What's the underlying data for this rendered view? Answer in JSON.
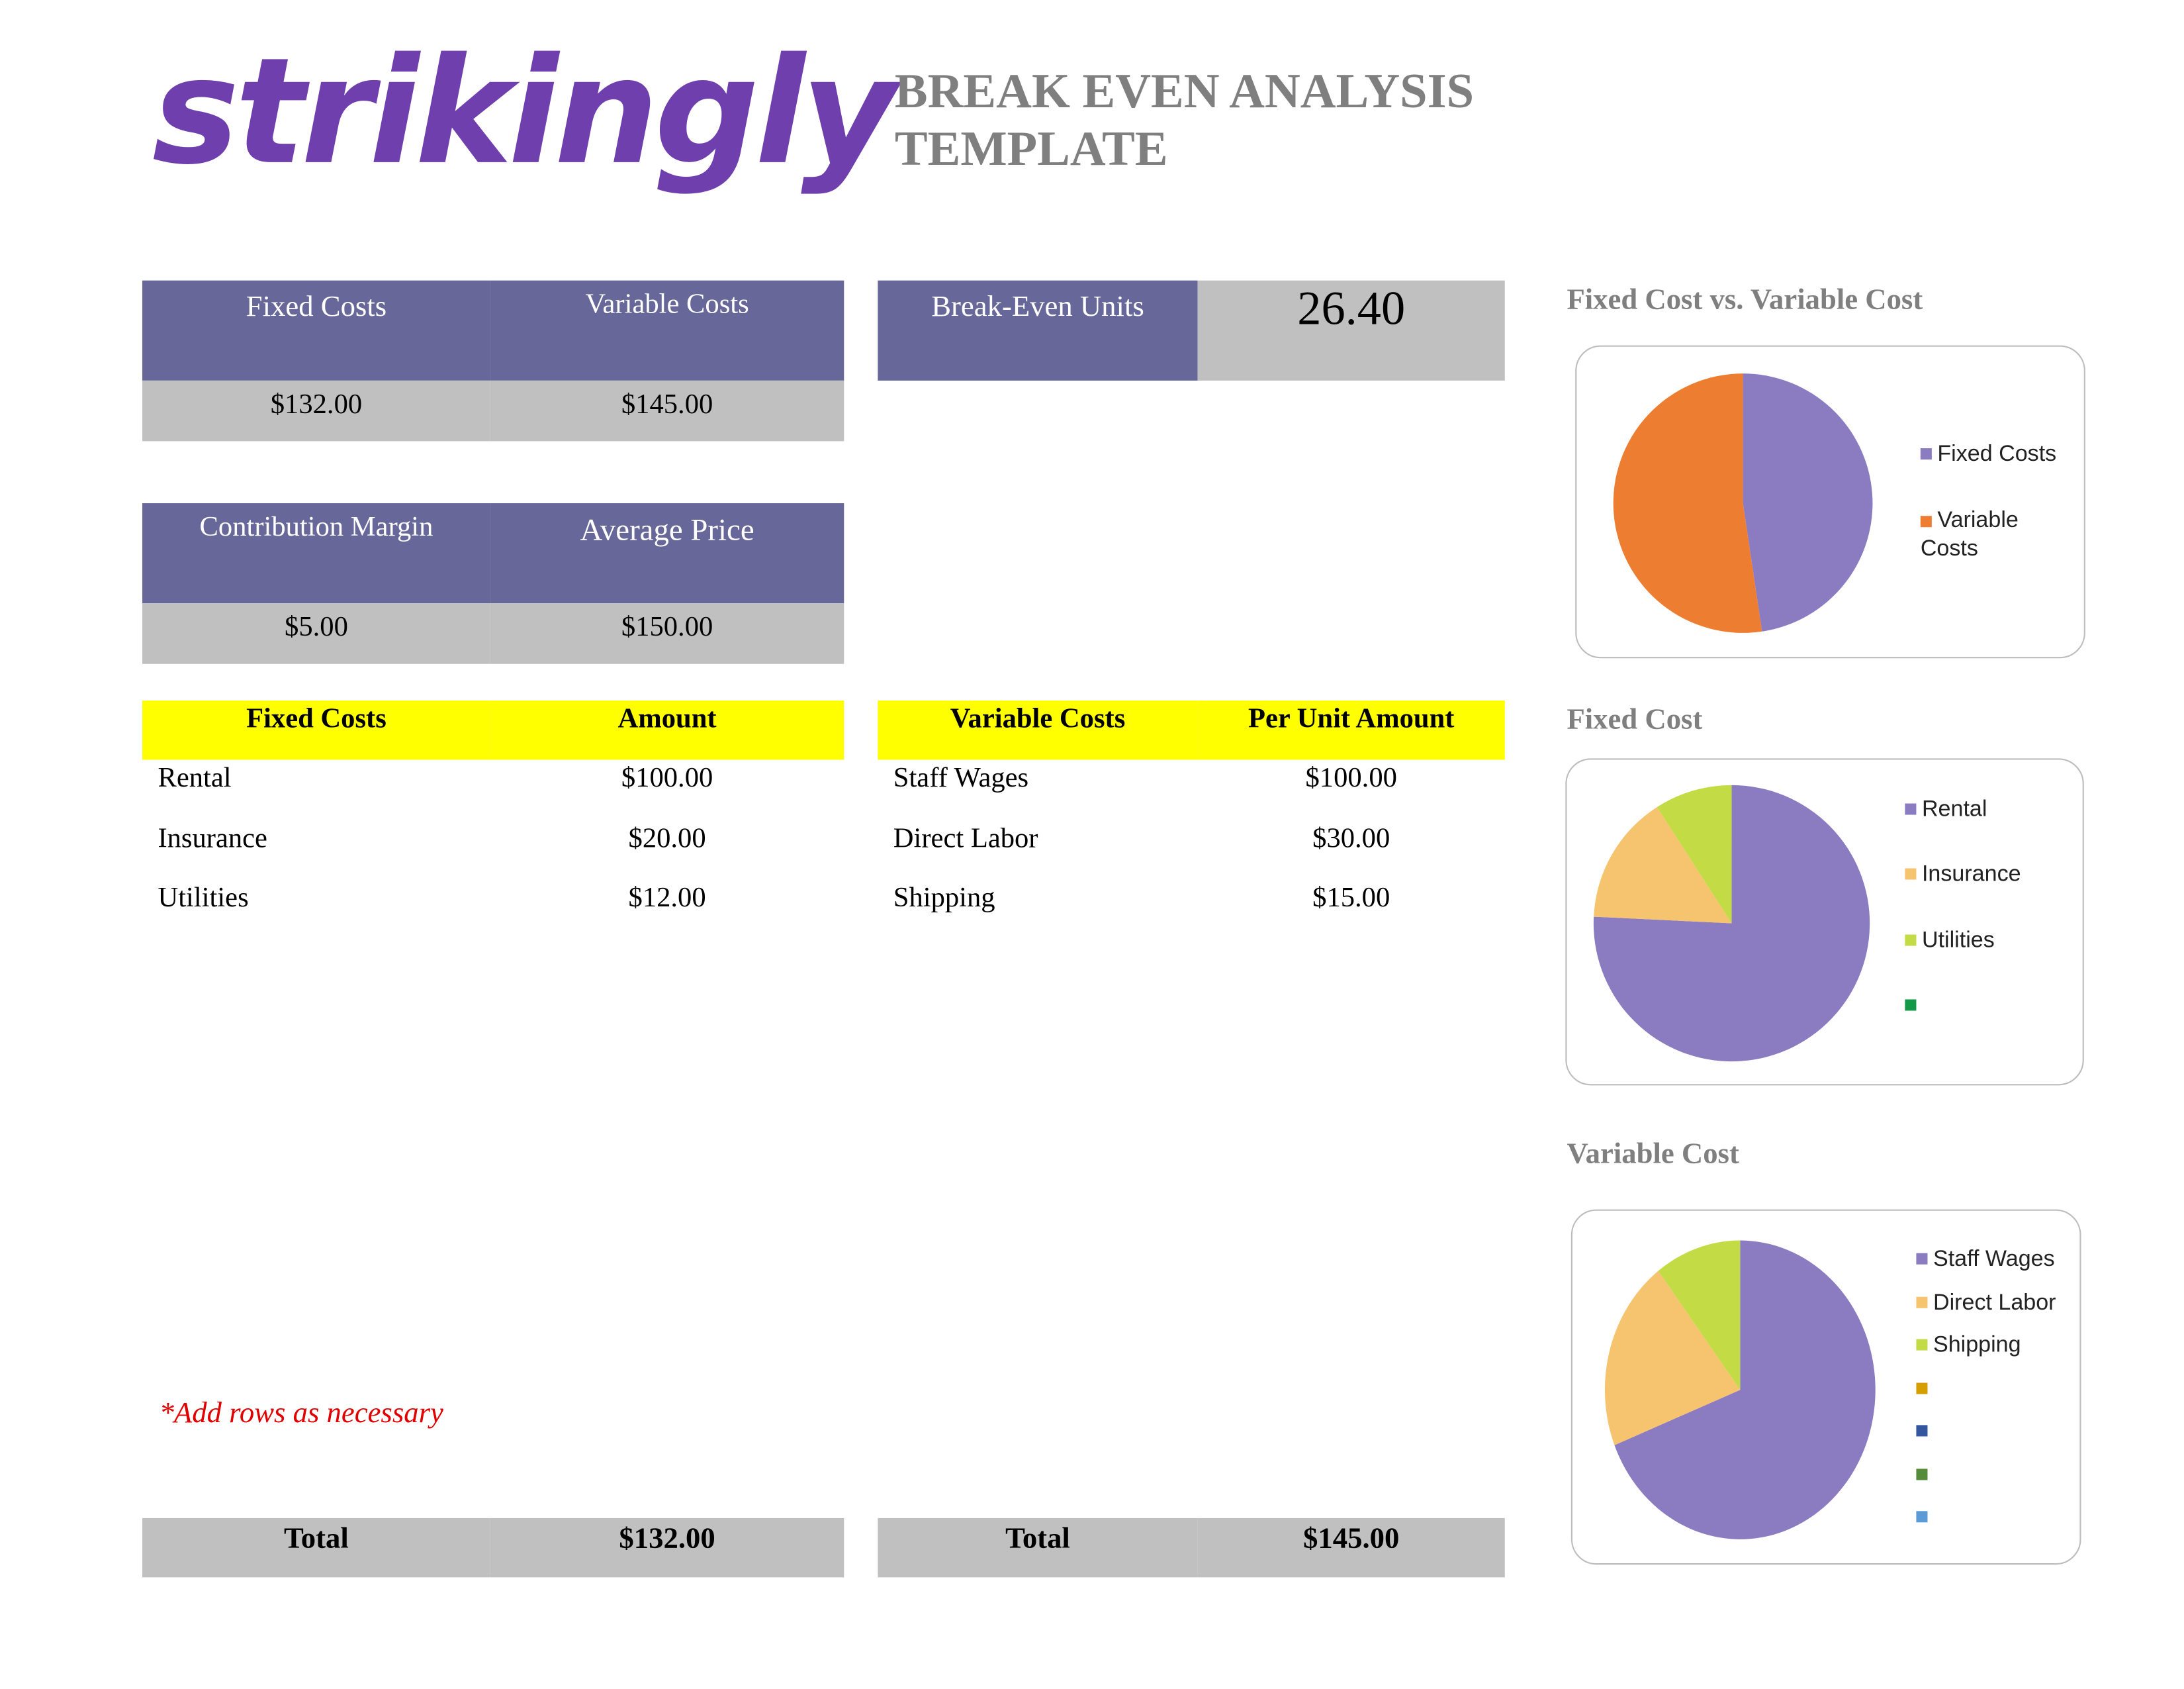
{
  "logo": "strikingly",
  "title_line1": "BREAK EVEN ANALYSIS",
  "title_line2": "TEMPLATE",
  "summary": {
    "fixed_costs_label": "Fixed Costs",
    "fixed_costs_value": "$132.00",
    "variable_costs_label": "Variable Costs",
    "variable_costs_value": "$145.00",
    "contribution_margin_label": "Contribution Margin",
    "contribution_margin_value": "$5.00",
    "average_price_label": "Average Price",
    "average_price_value": "$150.00",
    "break_even_label": "Break-Even Units",
    "break_even_value": "26.40"
  },
  "fixed_table": {
    "headers": [
      "Fixed Costs",
      "Amount"
    ],
    "rows": [
      [
        "Rental",
        "$100.00"
      ],
      [
        "Insurance",
        "$20.00"
      ],
      [
        "Utilities",
        "$12.00"
      ]
    ],
    "total_label": "Total",
    "total_value": "$132.00"
  },
  "variable_table": {
    "headers": [
      "Variable Costs",
      "Per Unit Amount"
    ],
    "rows": [
      [
        "Staff Wages",
        "$100.00"
      ],
      [
        "Direct Labor",
        "$30.00"
      ],
      [
        "Shipping",
        "$15.00"
      ]
    ],
    "total_label": "Total",
    "total_value": "$145.00"
  },
  "note": "*Add rows as necessary",
  "chart_data": [
    {
      "type": "pie",
      "title": "Fixed Cost vs. Variable Cost",
      "categories": [
        "Fixed Costs",
        "Variable Costs"
      ],
      "values": [
        132,
        145
      ],
      "colors": [
        "#8b7cc2",
        "#ed7d31"
      ],
      "legend": "right"
    },
    {
      "type": "pie",
      "title": "Fixed Cost",
      "categories": [
        "Rental",
        "Insurance",
        "Utilities",
        ""
      ],
      "values": [
        100,
        20,
        12,
        0
      ],
      "colors": [
        "#8b7cc2",
        "#f6c46e",
        "#c3db45",
        "#129a48"
      ],
      "legend": "right"
    },
    {
      "type": "pie",
      "title": "Variable Cost",
      "categories": [
        "Staff Wages",
        "Direct Labor",
        "Shipping",
        "",
        "",
        "",
        ""
      ],
      "values": [
        100,
        30,
        15,
        0,
        0,
        0,
        0
      ],
      "colors": [
        "#8b7cc2",
        "#f6c46e",
        "#c3db45",
        "#d69e00",
        "#34559f",
        "#548c3a",
        "#5b9bd5"
      ],
      "legend": "right"
    }
  ]
}
